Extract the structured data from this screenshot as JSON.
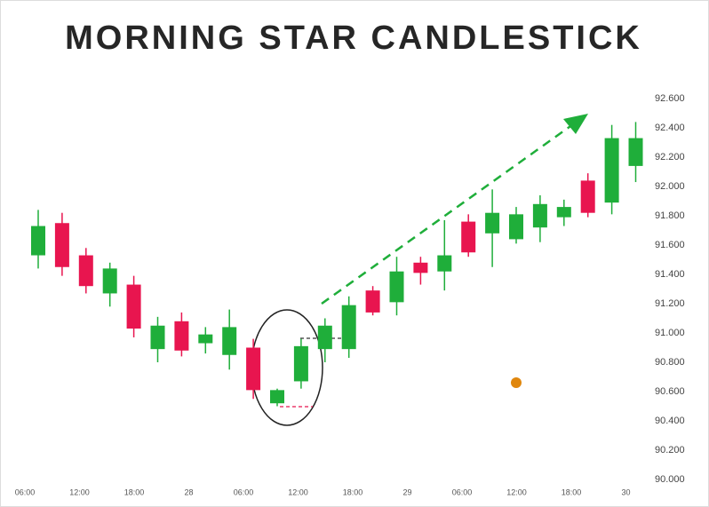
{
  "chart_data": {
    "type": "candlestick",
    "title": "MORNING STAR CANDLESTICK",
    "up_color": "#1fae3a",
    "down_color": "#e8154f",
    "open": [
      91.53,
      91.75,
      91.53,
      91.27,
      91.33,
      90.89,
      91.08,
      90.93,
      90.85,
      90.9,
      90.52,
      90.67,
      90.89,
      90.89,
      91.29,
      91.21,
      91.48,
      91.42,
      91.76,
      91.68,
      91.64,
      91.72,
      91.79,
      92.04,
      91.89,
      92.14
    ],
    "high": [
      91.84,
      91.82,
      91.58,
      91.48,
      91.39,
      91.11,
      91.14,
      91.04,
      91.16,
      90.96,
      90.62,
      90.96,
      91.1,
      91.25,
      91.32,
      91.52,
      91.52,
      91.77,
      91.81,
      91.98,
      91.86,
      91.94,
      91.91,
      92.09,
      92.42,
      92.44
    ],
    "low": [
      91.44,
      91.39,
      91.27,
      91.18,
      90.97,
      90.8,
      90.84,
      90.86,
      90.75,
      90.55,
      90.5,
      90.62,
      90.8,
      90.83,
      91.12,
      91.12,
      91.33,
      91.29,
      91.52,
      91.45,
      91.61,
      91.62,
      91.73,
      91.79,
      91.81,
      92.03
    ],
    "close": [
      91.73,
      91.45,
      91.32,
      91.44,
      91.03,
      91.05,
      90.88,
      90.99,
      91.04,
      90.61,
      90.61,
      90.91,
      91.05,
      91.19,
      91.14,
      91.42,
      91.41,
      91.53,
      91.55,
      91.82,
      91.81,
      91.88,
      91.86,
      91.82,
      92.33,
      92.33
    ],
    "x_labels": [
      "06:00",
      "12:00",
      "18:00",
      "28",
      "06:00",
      "12:00",
      "18:00",
      "29",
      "06:00",
      "12:00",
      "18:00",
      "30"
    ],
    "ylim": [
      90,
      92.6
    ],
    "yticks": [
      {
        "value": 90,
        "label": "90.000"
      },
      {
        "value": 90.2,
        "label": "90.200"
      },
      {
        "value": 90.4,
        "label": "90.400"
      },
      {
        "value": 90.6,
        "label": "90.600"
      },
      {
        "value": 90.8,
        "label": "90.800"
      },
      {
        "value": 91,
        "label": "91.000"
      },
      {
        "value": 91.2,
        "label": "91.200"
      },
      {
        "value": 91.4,
        "label": "91.400"
      },
      {
        "value": 91.6,
        "label": "91.600"
      },
      {
        "value": 91.8,
        "label": "91.800"
      },
      {
        "value": 92,
        "label": "92.000"
      },
      {
        "value": 92.2,
        "label": "92.200"
      },
      {
        "value": 92.4,
        "label": "92.400"
      },
      {
        "value": 92.6,
        "label": "92.600"
      }
    ]
  }
}
